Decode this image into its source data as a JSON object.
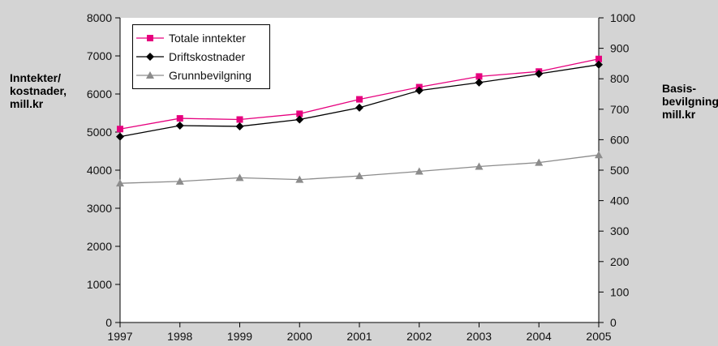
{
  "chart_data": {
    "type": "line",
    "x": [
      "1997",
      "1998",
      "1999",
      "2000",
      "2001",
      "2002",
      "2003",
      "2004",
      "2005"
    ],
    "ylabel_left": "Inntekter/\nkostnader,\nmill.kr",
    "ylabel_right": "Basis-\nbevilgning,\nmill.kr",
    "ylim_left": [
      0,
      8000
    ],
    "ylim_right": [
      0,
      1000
    ],
    "yticks_left": [
      "0",
      "1000",
      "2000",
      "3000",
      "4000",
      "5000",
      "6000",
      "7000",
      "8000"
    ],
    "yticks_right": [
      "0",
      "100",
      "200",
      "300",
      "400",
      "500",
      "600",
      "700",
      "800",
      "900",
      "1000"
    ],
    "grid": false,
    "legend_position": "top-left",
    "series": [
      {
        "name": "Totale inntekter",
        "axis": "left",
        "color": "#e6007e",
        "marker": "square",
        "values": [
          5080,
          5360,
          5330,
          5480,
          5860,
          6180,
          6460,
          6590,
          6920
        ]
      },
      {
        "name": "Driftskostnader",
        "axis": "left",
        "color": "#000000",
        "marker": "diamond",
        "values": [
          4880,
          5170,
          5150,
          5330,
          5640,
          6090,
          6300,
          6530,
          6770
        ]
      },
      {
        "name": "Grunnbevilgning",
        "axis": "right",
        "color": "#8c8c8c",
        "marker": "triangle",
        "values": [
          457,
          463,
          475,
          469,
          481,
          496,
          512,
          525,
          550
        ]
      }
    ]
  }
}
